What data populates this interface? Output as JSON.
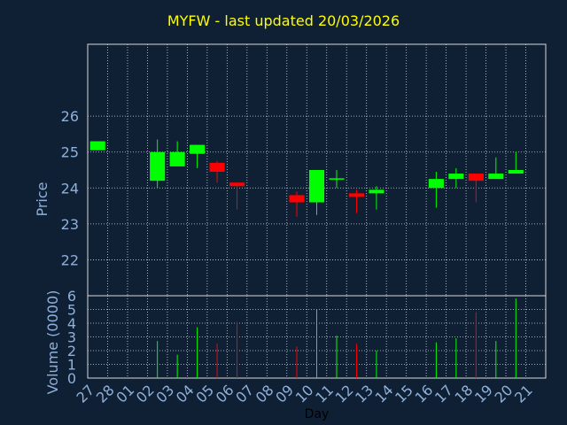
{
  "chart_data": {
    "type": "candlestick",
    "title": "MYFW - last updated 20/03/2026",
    "xlabel": "Day",
    "price_ylabel": "Price",
    "volume_ylabel": "Volume (0000)",
    "price_ylim": [
      21,
      28
    ],
    "price_ticks": [
      22,
      23,
      24,
      25,
      26
    ],
    "volume_ylim": [
      0,
      6
    ],
    "volume_ticks": [
      0,
      1,
      2,
      3,
      4,
      5,
      6
    ],
    "categories": [
      "27",
      "28",
      "01",
      "02",
      "03",
      "04",
      "05",
      "06",
      "07",
      "08",
      "09",
      "10",
      "11",
      "12",
      "13",
      "14",
      "15",
      "16",
      "17",
      "18",
      "19",
      "20",
      "21"
    ],
    "grid": true,
    "colors": {
      "up": "#00ff00",
      "down": "#ff0000",
      "background": "#0f2035",
      "title": "#ffff00",
      "axis_text": "#8fb0d8"
    },
    "candles": [
      {
        "day": "27",
        "open": 25.05,
        "high": 25.3,
        "low": 25.05,
        "close": 25.3
      },
      {
        "day": "02",
        "open": 24.2,
        "high": 25.35,
        "low": 24.0,
        "close": 25.0
      },
      {
        "day": "03",
        "open": 24.6,
        "high": 25.3,
        "low": 24.6,
        "close": 25.0
      },
      {
        "day": "04",
        "open": 24.95,
        "high": 25.2,
        "low": 24.55,
        "close": 25.2
      },
      {
        "day": "05",
        "open": 24.7,
        "high": 24.75,
        "low": 24.15,
        "close": 24.45
      },
      {
        "day": "06",
        "open": 24.15,
        "high": 24.15,
        "low": 23.4,
        "close": 24.05
      },
      {
        "day": "09",
        "open": 23.8,
        "high": 23.9,
        "low": 23.2,
        "close": 23.6
      },
      {
        "day": "10",
        "open": 23.6,
        "high": 24.5,
        "low": 23.25,
        "close": 24.5
      },
      {
        "day": "11",
        "open": 24.25,
        "high": 24.5,
        "low": 24.0,
        "close": 24.25
      },
      {
        "day": "12",
        "open": 23.85,
        "high": 23.95,
        "low": 23.3,
        "close": 23.75
      },
      {
        "day": "13",
        "open": 23.85,
        "high": 24.05,
        "low": 23.4,
        "close": 23.95
      },
      {
        "day": "16",
        "open": 24.0,
        "high": 24.45,
        "low": 23.45,
        "close": 24.25
      },
      {
        "day": "17",
        "open": 24.25,
        "high": 24.55,
        "low": 24.0,
        "close": 24.4
      },
      {
        "day": "18",
        "open": 24.4,
        "high": 24.4,
        "low": 23.6,
        "close": 24.2
      },
      {
        "day": "19",
        "open": 24.25,
        "high": 24.85,
        "low": 24.25,
        "close": 24.4
      },
      {
        "day": "20",
        "open": 24.4,
        "high": 25.0,
        "low": 24.4,
        "close": 24.5
      }
    ],
    "volume": [
      {
        "day": "02",
        "value": 2.7
      },
      {
        "day": "03",
        "value": 1.7
      },
      {
        "day": "04",
        "value": 3.7
      },
      {
        "day": "05",
        "value": 2.5
      },
      {
        "day": "06",
        "value": 4.1
      },
      {
        "day": "09",
        "value": 2.3
      },
      {
        "day": "10",
        "value": 5.0
      },
      {
        "day": "11",
        "value": 3.1
      },
      {
        "day": "12",
        "value": 2.5
      },
      {
        "day": "13",
        "value": 2.0
      },
      {
        "day": "16",
        "value": 2.6
      },
      {
        "day": "17",
        "value": 2.9
      },
      {
        "day": "18",
        "value": 4.8
      },
      {
        "day": "19",
        "value": 2.7
      },
      {
        "day": "20",
        "value": 5.8
      }
    ]
  }
}
